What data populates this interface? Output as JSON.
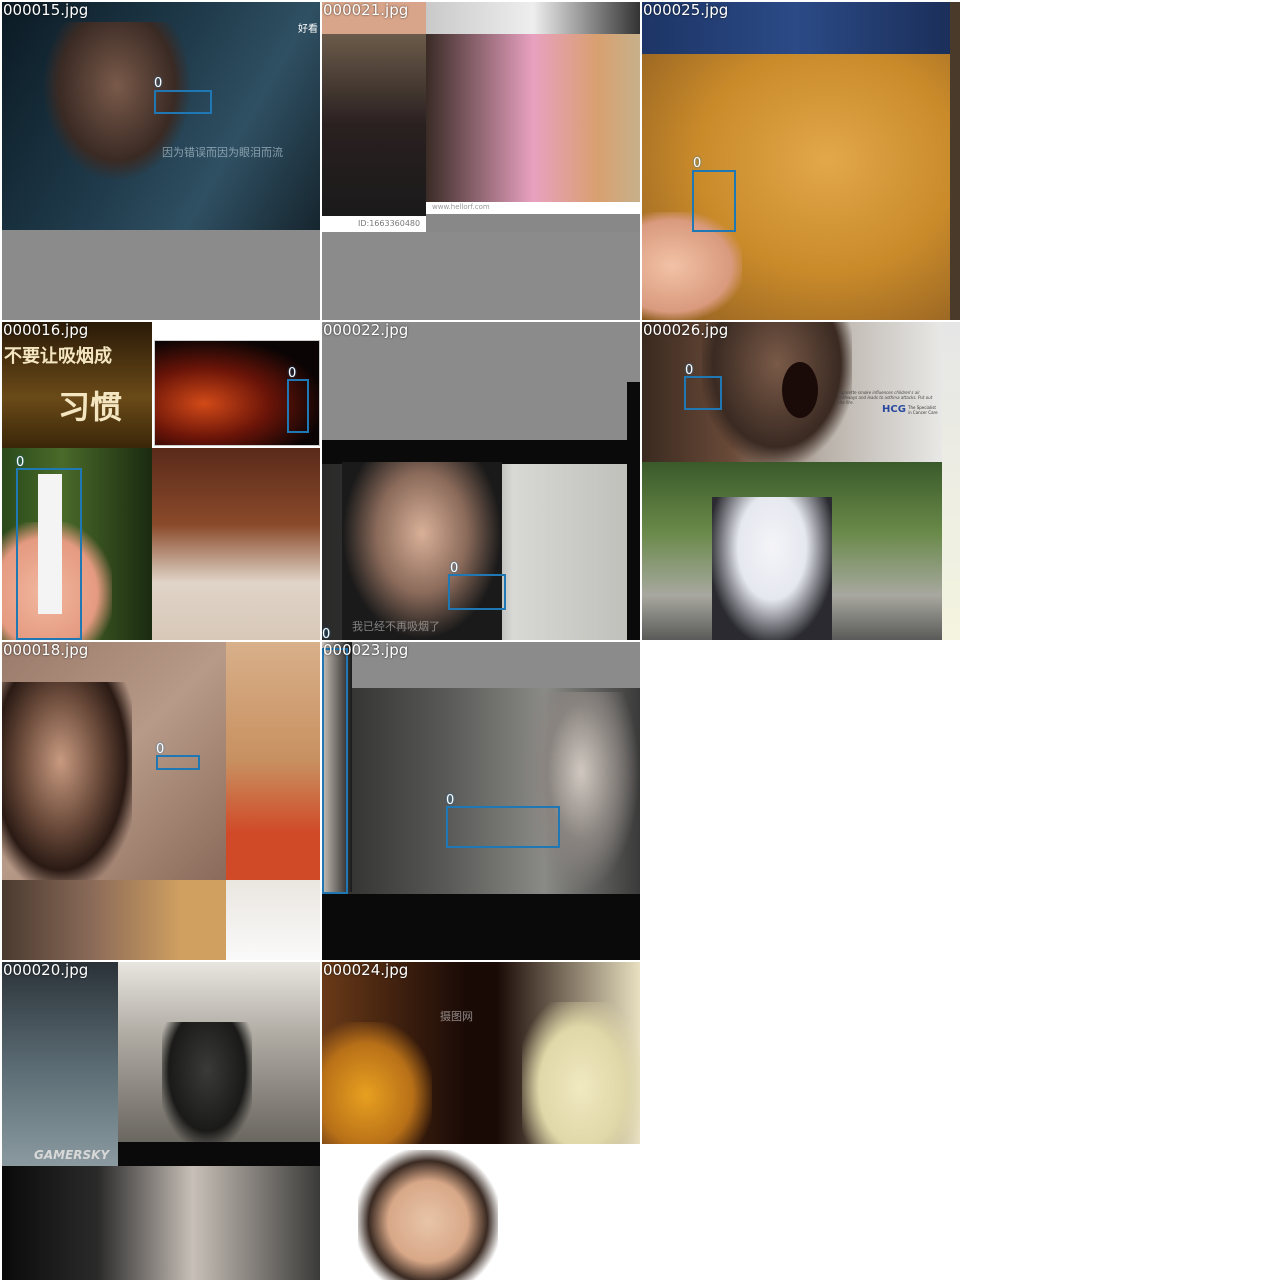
{
  "grid": {
    "tiles": [
      {
        "id": "t15",
        "filename": "000015.jpg",
        "text": {
          "watermark_top": "好看",
          "subtitle": "因为错误而因为眼泪而流"
        }
      },
      {
        "id": "t21",
        "filename": "000021.jpg",
        "text": {
          "id_caption": "ID:1663360480",
          "url": "www.hellorf.com"
        }
      },
      {
        "id": "t25",
        "filename": "000025.jpg"
      },
      {
        "id": "t16",
        "filename": "000016.jpg",
        "text": {
          "banner": "不要让吸烟成",
          "big_char": "习惯"
        }
      },
      {
        "id": "t22",
        "filename": "000022.jpg",
        "text": {
          "subtitle": "我已经不再吸烟了"
        }
      },
      {
        "id": "t26",
        "filename": "000026.jpg",
        "text": {
          "ad_line": "Cigarette smoke influences children's air pathways and leads to asthma attacks. Put out the fire.",
          "brand": "HCG",
          "tagline": "The Specialist in Cancer Care"
        }
      },
      {
        "id": "t18",
        "filename": "000018.jpg"
      },
      {
        "id": "t23",
        "filename": "000023.jpg"
      },
      {
        "id": "t20",
        "filename": "000020.jpg",
        "text": {
          "watermark": "GAMERSKY"
        }
      },
      {
        "id": "t24",
        "filename": "000024.jpg",
        "text": {
          "watermark": "摄图网"
        }
      }
    ],
    "box_label": "0"
  },
  "colors": {
    "box": "#1f77b4",
    "label": "#ffffff",
    "background": "#ffffff"
  }
}
